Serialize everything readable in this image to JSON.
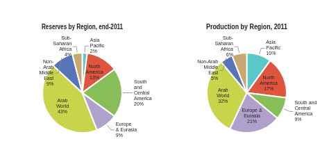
{
  "chart_data": [
    {
      "type": "pie",
      "title": "Reserves by Region, end-2011",
      "categories": [
        "Asia\nPacific",
        "North\nAmerica",
        "South\nand\nCentral\nAmerica",
        "Europe\n& Eurasia",
        "Arab\nWorld",
        "Non-\nArab\nMiddle\nEast",
        "Sub-\nSaharan\nAfrica"
      ],
      "values": [
        2,
        13,
        20,
        9,
        43,
        9,
        4
      ],
      "value_labels": [
        "2%",
        "13%",
        "20%",
        "9%",
        "43%",
        "9%",
        "4%"
      ],
      "colors": [
        "#5ac8c8",
        "#e05540",
        "#88be58",
        "#b0a0cc",
        "#c8d44a",
        "#5575b8",
        "#c8a870"
      ],
      "data_labels": true
    },
    {
      "type": "pie",
      "title": "Production by Region, 2011",
      "categories": [
        "Asia\nPacific",
        "North\nAmerica",
        "South and\nCentral\nAmerica",
        "Europe &\nEurasia",
        "Arab\nWorld",
        "Non-Arab\nMiddle\nEast",
        "Sub-\nSaharan\nAfrica"
      ],
      "values": [
        10,
        17,
        9,
        21,
        32,
        5,
        6
      ],
      "value_labels": [
        "10%",
        "17%",
        "9%",
        "21%",
        "32%",
        "5%",
        "6%"
      ],
      "colors": [
        "#5ac8c8",
        "#e05540",
        "#88be58",
        "#b0a0cc",
        "#c8d44a",
        "#5575b8",
        "#c8a870"
      ],
      "data_labels": true
    }
  ]
}
